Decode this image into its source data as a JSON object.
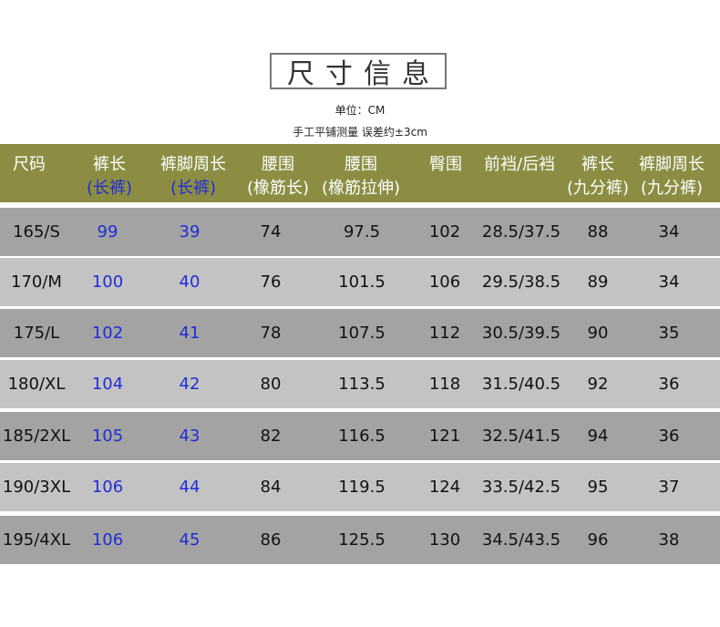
{
  "title": "尺寸信息",
  "unit_text": "单位：CM",
  "note_text": "手工平铺测量 误差约±3cm",
  "colors": {
    "header_bg": "#8c8d43",
    "row_dark": "#a3a3a3",
    "row_light": "#c3c3c3",
    "accent_blue": "#1f2ed6"
  },
  "headers": [
    {
      "line1": "尺码",
      "line2": ""
    },
    {
      "line1": "裤长",
      "line2": "(长裤)"
    },
    {
      "line1": "裤脚周长",
      "line2": "(长裤)"
    },
    {
      "line1": "腰围",
      "line2": "(橡筋长)"
    },
    {
      "line1": "腰围",
      "line2": "(橡筋拉伸)"
    },
    {
      "line1": "臀围",
      "line2": ""
    },
    {
      "line1": "前裆/后裆",
      "line2": ""
    },
    {
      "line1": "裤长",
      "line2": "(九分裤)"
    },
    {
      "line1": "裤脚周长",
      "line2": "(九分裤)"
    }
  ],
  "rows": [
    [
      "165/S",
      "99",
      "39",
      "74",
      "97.5",
      "102",
      "28.5/37.5",
      "88",
      "34"
    ],
    [
      "170/M",
      "100",
      "40",
      "76",
      "101.5",
      "106",
      "29.5/38.5",
      "89",
      "34"
    ],
    [
      "175/L",
      "102",
      "41",
      "78",
      "107.5",
      "112",
      "30.5/39.5",
      "90",
      "35"
    ],
    [
      "180/XL",
      "104",
      "42",
      "80",
      "113.5",
      "118",
      "31.5/40.5",
      "92",
      "36"
    ],
    [
      "185/2XL",
      "105",
      "43",
      "82",
      "116.5",
      "121",
      "32.5/41.5",
      "94",
      "36"
    ],
    [
      "190/3XL",
      "106",
      "44",
      "84",
      "119.5",
      "124",
      "33.5/42.5",
      "95",
      "37"
    ],
    [
      "195/4XL",
      "106",
      "45",
      "86",
      "125.5",
      "130",
      "34.5/43.5",
      "96",
      "38"
    ]
  ]
}
